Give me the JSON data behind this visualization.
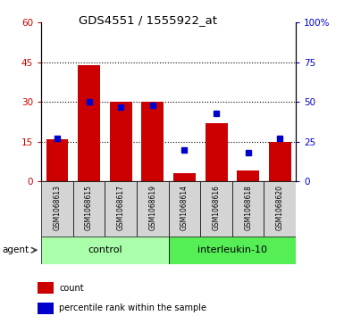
{
  "title": "GDS4551 / 1555922_at",
  "samples": [
    "GSM1068613",
    "GSM1068615",
    "GSM1068617",
    "GSM1068619",
    "GSM1068614",
    "GSM1068616",
    "GSM1068618",
    "GSM1068620"
  ],
  "count_values": [
    16,
    44,
    30,
    30,
    3,
    22,
    4,
    15
  ],
  "percentile_values": [
    27,
    50,
    47,
    48,
    20,
    43,
    18,
    27
  ],
  "groups": [
    {
      "label": "control",
      "indices": [
        0,
        1,
        2,
        3
      ],
      "color": "#aaffaa"
    },
    {
      "label": "interleukin-10",
      "indices": [
        4,
        5,
        6,
        7
      ],
      "color": "#55ee55"
    }
  ],
  "agent_label": "agent",
  "left_ylim": [
    0,
    60
  ],
  "right_ylim": [
    0,
    100
  ],
  "left_yticks": [
    0,
    15,
    30,
    45,
    60
  ],
  "right_yticks": [
    0,
    25,
    50,
    75,
    100
  ],
  "right_yticklabels": [
    "0",
    "25",
    "50",
    "75",
    "100%"
  ],
  "grid_values": [
    15,
    30,
    45
  ],
  "bar_color": "#cc0000",
  "marker_color": "#0000cc",
  "bar_width": 0.7,
  "marker_size": 5,
  "plot_bg": "#ffffff",
  "left_tick_color": "#cc0000",
  "right_tick_color": "#0000cc",
  "legend_items": [
    {
      "color": "#cc0000",
      "label": "count"
    },
    {
      "color": "#0000cc",
      "label": "percentile rank within the sample"
    }
  ]
}
